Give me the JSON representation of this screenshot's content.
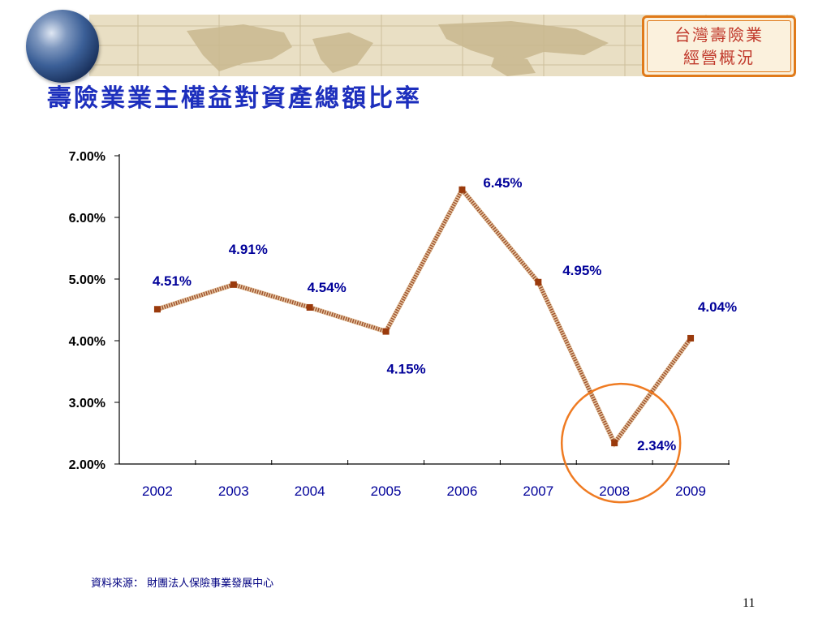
{
  "header": {
    "badge_lines": [
      "台灣壽險業",
      "經營概況"
    ]
  },
  "title": "壽險業業主權益對資產總額比率",
  "chart_data": {
    "type": "line",
    "title": "",
    "xlabel": "",
    "ylabel": "",
    "categories": [
      "2002",
      "2003",
      "2004",
      "2005",
      "2006",
      "2007",
      "2008",
      "2009"
    ],
    "series": [
      {
        "values": [
          4.51,
          4.91,
          4.54,
          4.15,
          6.45,
          4.95,
          2.34,
          4.04
        ],
        "labels": [
          "4.51%",
          "4.91%",
          "4.54%",
          "4.15%",
          "6.45%",
          "4.95%",
          "2.34%",
          "4.04%"
        ]
      }
    ],
    "ylim": [
      2.0,
      7.0
    ],
    "yticks": [
      2.0,
      3.0,
      4.0,
      5.0,
      6.0,
      7.0
    ],
    "ytick_labels": [
      "2.00%",
      "3.00%",
      "4.00%",
      "5.00%",
      "6.00%",
      "7.00%"
    ],
    "grid": false,
    "legend": "none",
    "line_color": "#a0522d",
    "marker_color": "#9a3a0c",
    "label_color": "#000099",
    "highlight": {
      "category": "2008",
      "shape": "circle",
      "color": "#ef7b22"
    }
  },
  "source_note": "資料來源： 財團法人保險事業發展中心",
  "page_number": "11"
}
